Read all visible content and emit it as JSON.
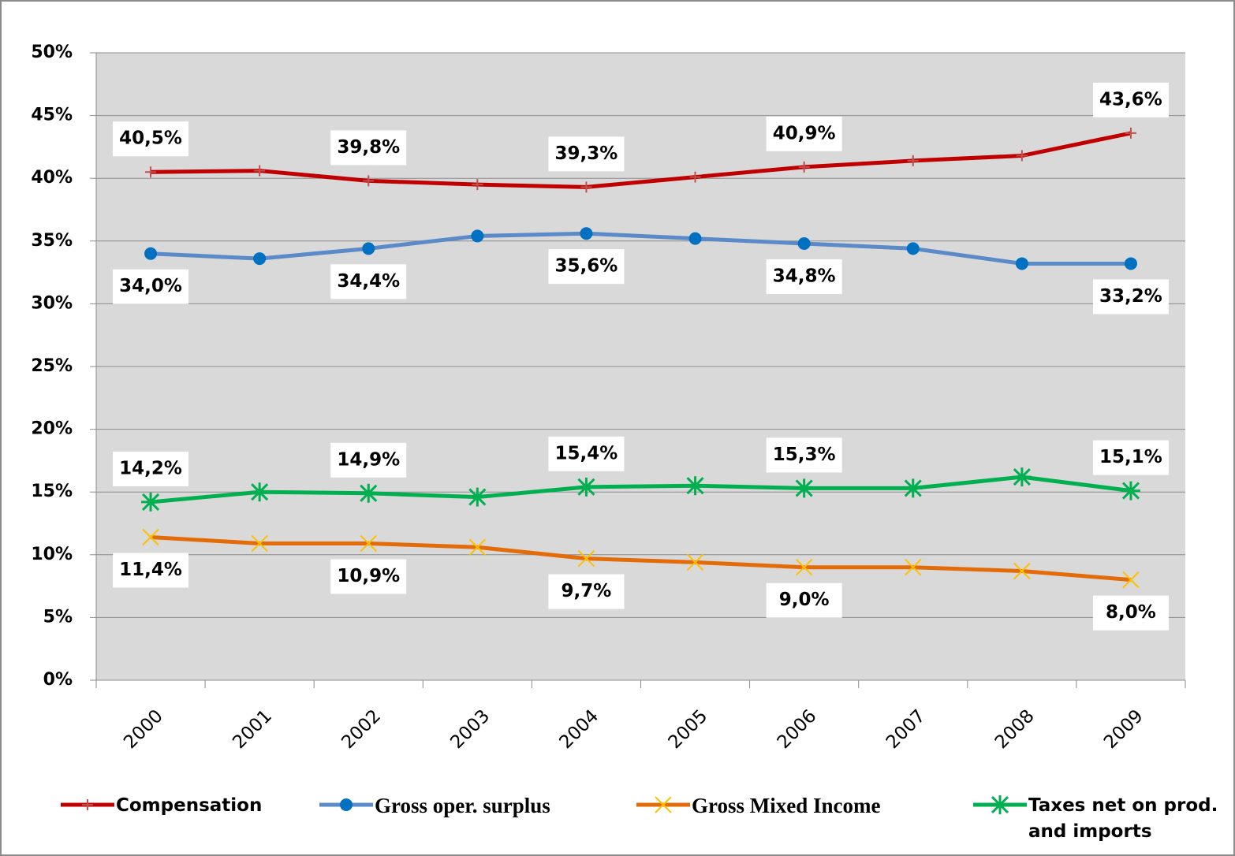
{
  "chart_data": {
    "type": "line",
    "categories": [
      "2000",
      "2001",
      "2002",
      "2003",
      "2004",
      "2005",
      "2006",
      "2007",
      "2008",
      "2009"
    ],
    "ylim": [
      0,
      50
    ],
    "yticks": [
      {
        "value": 0,
        "label": "0%"
      },
      {
        "value": 5,
        "label": "5%"
      },
      {
        "value": 10,
        "label": "10%"
      },
      {
        "value": 15,
        "label": "15%"
      },
      {
        "value": 20,
        "label": "20%"
      },
      {
        "value": 25,
        "label": "25%"
      },
      {
        "value": 30,
        "label": "30%"
      },
      {
        "value": 35,
        "label": "35%"
      },
      {
        "value": 40,
        "label": "40%"
      },
      {
        "value": 45,
        "label": "45%"
      },
      {
        "value": 50,
        "label": "50%"
      }
    ],
    "grid": true,
    "plot_background": "#d9d9d9",
    "series": [
      {
        "name": "Compensation",
        "color": "#c00000",
        "marker": "plus",
        "marker_color": "#c0504d",
        "label_position": "above",
        "values": [
          40.5,
          40.6,
          39.8,
          39.5,
          39.3,
          40.1,
          40.9,
          41.4,
          41.8,
          43.6
        ],
        "value_labels": [
          "40,5%",
          null,
          "39,8%",
          null,
          "39,3%",
          null,
          "40,9%",
          null,
          null,
          "43,6%"
        ]
      },
      {
        "name": "Gross oper. surplus",
        "color": "#5b8ac8",
        "marker": "circle",
        "marker_color": "#0070c0",
        "label_position": "below",
        "values": [
          34.0,
          33.6,
          34.4,
          35.4,
          35.6,
          35.2,
          34.8,
          34.4,
          33.2,
          33.2
        ],
        "value_labels": [
          "34,0%",
          null,
          "34,4%",
          null,
          "35,6%",
          null,
          "34,8%",
          null,
          null,
          "33,2%"
        ]
      },
      {
        "name": "Gross Mixed Income",
        "color": "#e36c09",
        "marker": "x",
        "marker_color": "#ffc000",
        "label_position": "below",
        "values": [
          11.4,
          10.9,
          10.9,
          10.6,
          9.7,
          9.4,
          9.0,
          9.0,
          8.7,
          8.0
        ],
        "value_labels": [
          "11,4%",
          null,
          "10,9%",
          null,
          "9,7%",
          null,
          "9,0%",
          null,
          null,
          "8,0%"
        ]
      },
      {
        "name": "Taxes net on prod. and imports",
        "color": "#00b050",
        "marker": "star",
        "marker_color": "#00b050",
        "label_position": "above",
        "values": [
          14.2,
          15.0,
          14.9,
          14.6,
          15.4,
          15.5,
          15.3,
          15.3,
          16.2,
          15.1
        ],
        "value_labels": [
          "14,2%",
          null,
          "14,9%",
          null,
          "15,4%",
          null,
          "15,3%",
          null,
          null,
          "15,1%"
        ]
      }
    ]
  }
}
